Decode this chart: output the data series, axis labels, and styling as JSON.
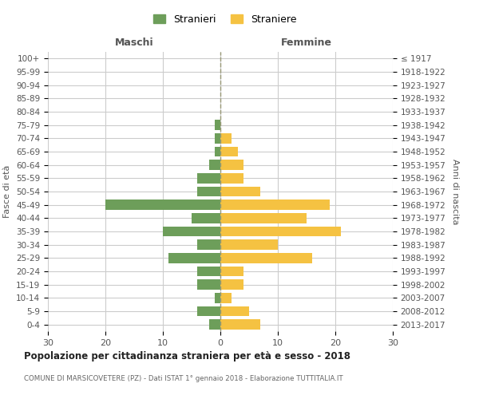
{
  "age_groups": [
    "0-4",
    "5-9",
    "10-14",
    "15-19",
    "20-24",
    "25-29",
    "30-34",
    "35-39",
    "40-44",
    "45-49",
    "50-54",
    "55-59",
    "60-64",
    "65-69",
    "70-74",
    "75-79",
    "80-84",
    "85-89",
    "90-94",
    "95-99",
    "100+"
  ],
  "birth_years": [
    "2013-2017",
    "2008-2012",
    "2003-2007",
    "1998-2002",
    "1993-1997",
    "1988-1992",
    "1983-1987",
    "1978-1982",
    "1973-1977",
    "1968-1972",
    "1963-1967",
    "1958-1962",
    "1953-1957",
    "1948-1952",
    "1943-1947",
    "1938-1942",
    "1933-1937",
    "1928-1932",
    "1923-1927",
    "1918-1922",
    "≤ 1917"
  ],
  "maschi": [
    2,
    4,
    1,
    4,
    4,
    9,
    4,
    10,
    5,
    20,
    4,
    4,
    2,
    1,
    1,
    1,
    0,
    0,
    0,
    0,
    0
  ],
  "femmine": [
    7,
    5,
    2,
    4,
    4,
    16,
    10,
    21,
    15,
    19,
    7,
    4,
    4,
    3,
    2,
    0,
    0,
    0,
    0,
    0,
    0
  ],
  "maschi_color": "#6d9e5a",
  "femmine_color": "#f5c242",
  "title": "Popolazione per cittadinanza straniera per età e sesso - 2018",
  "subtitle": "COMUNE DI MARSICOVETERE (PZ) - Dati ISTAT 1° gennaio 2018 - Elaborazione TUTTITALIA.IT",
  "xlabel_left": "Maschi",
  "xlabel_right": "Femmine",
  "ylabel_left": "Fasce di età",
  "ylabel_right": "Anni di nascita",
  "legend_maschi": "Stranieri",
  "legend_femmine": "Straniere",
  "xlim": 30,
  "background_color": "#ffffff",
  "grid_color": "#cccccc"
}
